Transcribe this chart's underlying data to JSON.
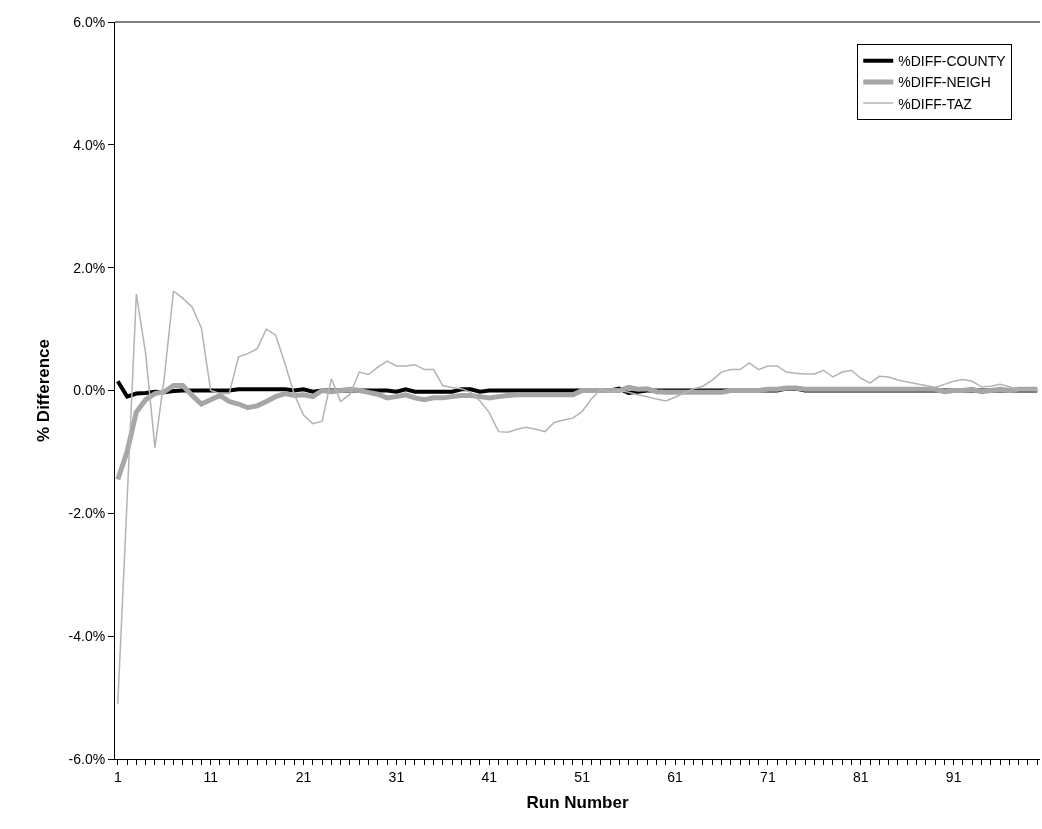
{
  "chart_data": {
    "type": "line",
    "xlabel": "Run Number",
    "ylabel": "% Difference",
    "categories": [
      "1",
      null,
      null,
      null,
      null,
      null,
      null,
      null,
      null,
      null,
      "11",
      null,
      null,
      null,
      null,
      null,
      null,
      null,
      null,
      null,
      "21",
      null,
      null,
      null,
      null,
      null,
      null,
      null,
      null,
      null,
      "31",
      null,
      null,
      null,
      null,
      null,
      null,
      null,
      null,
      null,
      "41",
      null,
      null,
      null,
      null,
      null,
      null,
      null,
      null,
      null,
      "51",
      null,
      null,
      null,
      null,
      null,
      null,
      null,
      null,
      null,
      "61",
      null,
      null,
      null,
      null,
      null,
      null,
      null,
      null,
      null,
      "71",
      null,
      null,
      null,
      null,
      null,
      null,
      null,
      null,
      null,
      "81",
      null,
      null,
      null,
      null,
      null,
      null,
      null,
      null,
      null,
      "91",
      null,
      null,
      null,
      null,
      null,
      null,
      null,
      null,
      null
    ],
    "series": [
      {
        "name": "%DIFF-COUNTY",
        "color": "#000000",
        "values": [
          0.15,
          -0.1,
          -0.05,
          -0.04,
          -0.02,
          -0.03,
          -0.01,
          0,
          0,
          0,
          0,
          0,
          0,
          0.02,
          0.02,
          0.02,
          0.02,
          0.02,
          0.02,
          0,
          0.02,
          -0.02,
          0,
          0,
          0,
          0,
          0,
          0,
          0,
          0,
          -0.02,
          0.02,
          -0.02,
          -0.02,
          -0.02,
          -0.02,
          -0.02,
          0.02,
          0.02,
          -0.02,
          0,
          0,
          0,
          0,
          0,
          0,
          0,
          0,
          0,
          0,
          0,
          0,
          0,
          0,
          0.03,
          -0.04,
          -0.02,
          0,
          0,
          0,
          0,
          0,
          0,
          0,
          0,
          0,
          0,
          0,
          0,
          0,
          0,
          0,
          0.03,
          0.03,
          0,
          0,
          0,
          0,
          0,
          0,
          0,
          0,
          0,
          0,
          0,
          0,
          0,
          0,
          0,
          0,
          0,
          0,
          0,
          0,
          0,
          0,
          0,
          0,
          0,
          0
        ]
      },
      {
        "name": "%DIFF-NEIGH",
        "color": "#a6a6a6",
        "values": [
          -1.45,
          -1.0,
          -0.35,
          -0.15,
          -0.05,
          -0.02,
          0.08,
          0.08,
          -0.08,
          -0.22,
          -0.15,
          -0.08,
          -0.18,
          -0.22,
          -0.28,
          -0.25,
          -0.18,
          -0.1,
          -0.05,
          -0.08,
          -0.07,
          -0.1,
          0,
          -0.02,
          0,
          0.02,
          0,
          -0.03,
          -0.06,
          -0.12,
          -0.1,
          -0.07,
          -0.12,
          -0.15,
          -0.12,
          -0.12,
          -0.1,
          -0.08,
          -0.08,
          -0.1,
          -0.12,
          -0.1,
          -0.08,
          -0.07,
          -0.07,
          -0.07,
          -0.07,
          -0.07,
          -0.07,
          -0.07,
          0,
          0,
          0,
          0,
          0,
          0.05,
          0.02,
          0.03,
          -0.02,
          -0.03,
          -0.03,
          -0.03,
          -0.03,
          -0.03,
          -0.03,
          -0.03,
          0,
          0,
          0,
          0,
          0.02,
          0.02,
          0.04,
          0.04,
          0.02,
          0.02,
          0.02,
          0.02,
          0.02,
          0.02,
          0.02,
          0.02,
          0.02,
          0.02,
          0.02,
          0.02,
          0.02,
          0.02,
          0.02,
          -0.02,
          0,
          0,
          0.02,
          -0.02,
          0,
          0.02,
          0,
          0.02,
          0.02,
          0.02
        ]
      },
      {
        "name": "%DIFF-TAZ",
        "color": "#b3b3b3",
        "values": [
          -5.1,
          -1.8,
          1.57,
          0.6,
          -0.93,
          0.2,
          1.62,
          1.5,
          1.36,
          1.02,
          0,
          -0.05,
          -0.05,
          0.55,
          0.6,
          0.68,
          1.0,
          0.9,
          0.44,
          -0.06,
          -0.4,
          -0.54,
          -0.5,
          0.19,
          -0.18,
          -0.06,
          0.3,
          0.26,
          0.38,
          0.48,
          0.4,
          0.4,
          0.42,
          0.34,
          0.34,
          0.08,
          0.05,
          0.03,
          -0.03,
          -0.17,
          -0.36,
          -0.67,
          -0.68,
          -0.63,
          -0.6,
          -0.63,
          -0.67,
          -0.52,
          -0.48,
          -0.45,
          -0.34,
          -0.14,
          0.02,
          -0.03,
          0,
          -0.03,
          -0.07,
          -0.1,
          -0.14,
          -0.17,
          -0.11,
          -0.04,
          0.03,
          0.07,
          0.17,
          0.3,
          0.34,
          0.34,
          0.45,
          0.34,
          0.4,
          0.4,
          0.3,
          0.28,
          0.27,
          0.27,
          0.33,
          0.22,
          0.3,
          0.33,
          0.2,
          0.12,
          0.23,
          0.22,
          0.17,
          0.14,
          0.11,
          0.08,
          0.05,
          0.1,
          0.15,
          0.18,
          0.15,
          0.06,
          0.07,
          0.1,
          0.06,
          0.01,
          0.02,
          0
        ]
      }
    ],
    "ylim": [
      -6,
      6
    ],
    "yticks": [
      {
        "value": -6,
        "label": "-6.0%"
      },
      {
        "value": -4,
        "label": "-4.0%"
      },
      {
        "value": -2,
        "label": "-2.0%"
      },
      {
        "value": 0,
        "label": "0.0%"
      },
      {
        "value": 2,
        "label": "2.0%"
      },
      {
        "value": 4,
        "label": "4.0%"
      },
      {
        "value": 6,
        "label": "6.0%"
      }
    ],
    "grid": false,
    "legend": "top right",
    "marker": "none",
    "line_style": "solid"
  }
}
